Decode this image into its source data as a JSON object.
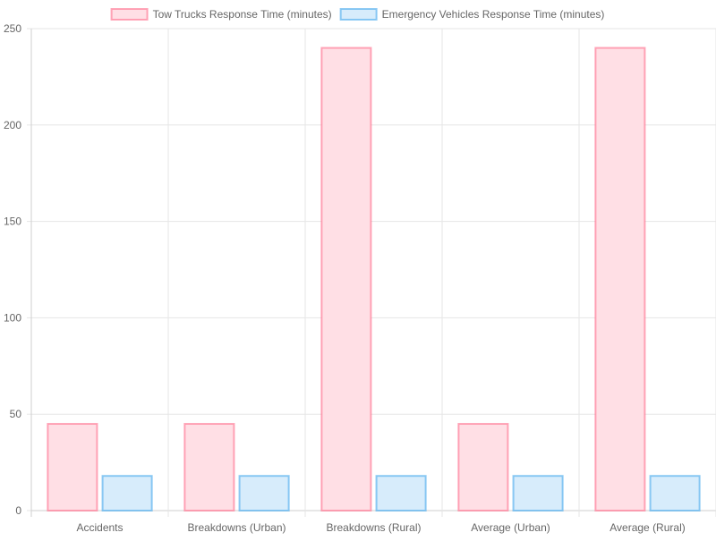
{
  "chart_data": {
    "type": "bar",
    "categories": [
      "Accidents",
      "Breakdowns (Urban)",
      "Breakdowns (Rural)",
      "Average (Urban)",
      "Average (Rural)"
    ],
    "series": [
      {
        "name": "Tow Trucks Response Time (minutes)",
        "values": [
          45,
          45,
          240,
          45,
          240
        ],
        "color": "#ff6384",
        "fill": "#ffdfe5"
      },
      {
        "name": "Emergency Vehicles Response Time (minutes)",
        "values": [
          18,
          18,
          18,
          18,
          18
        ],
        "color": "#36a2eb",
        "fill": "#d7ecfb"
      }
    ],
    "ylim": [
      0,
      250
    ],
    "yticks": [
      0,
      50,
      100,
      150,
      200,
      250
    ],
    "grid": true,
    "legend": "top-center"
  }
}
